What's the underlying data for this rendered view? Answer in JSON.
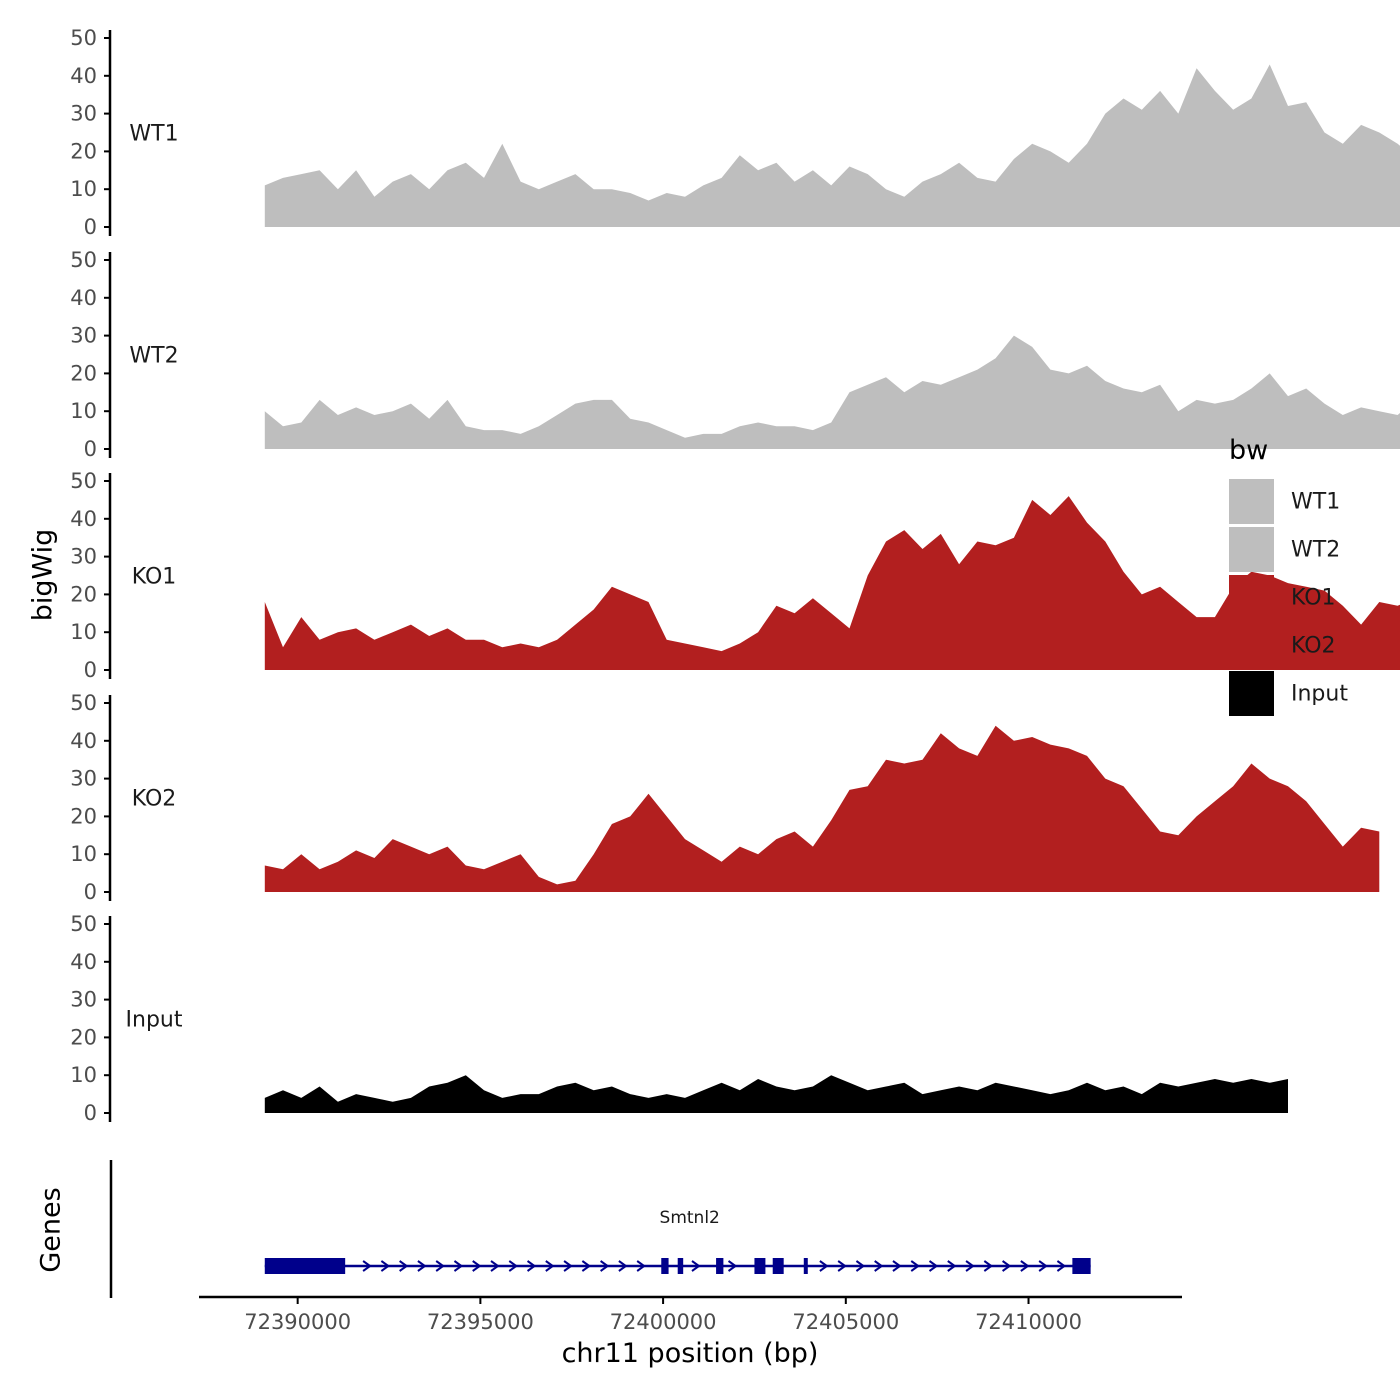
{
  "chart_data": {
    "type": "area",
    "chromosome": "chr11",
    "xlabel": "chr11 position (bp)",
    "ylabel": "bigWig",
    "gene_track_label": "Genes",
    "xlim": [
      72387300,
      72414200
    ],
    "xticks": [
      72390000,
      72395000,
      72400000,
      72405000,
      72410000
    ],
    "xtick_labels": [
      "72390000",
      "72395000",
      "72400000",
      "72405000",
      "72410000"
    ],
    "ylim": [
      0,
      50
    ],
    "yticks": [
      0,
      10,
      20,
      30,
      40,
      50
    ],
    "ytick_labels": [
      "0",
      "10",
      "20",
      "30",
      "40",
      "50"
    ],
    "data_start": 72389100,
    "data_step": 500,
    "legend": {
      "title": "bw",
      "entries": [
        {
          "label": "WT1",
          "color": "#bebebe"
        },
        {
          "label": "WT2",
          "color": "#bebebe"
        },
        {
          "label": "KO1",
          "color": "#b21f1f"
        },
        {
          "label": "KO2",
          "color": "#b21f1f"
        },
        {
          "label": "Input",
          "color": "#000000"
        }
      ]
    },
    "series": [
      {
        "name": "WT1",
        "color": "#bebebe",
        "values": [
          11,
          13,
          14,
          15,
          10,
          15,
          8,
          12,
          14,
          10,
          15,
          17,
          13,
          22,
          12,
          10,
          12,
          14,
          10,
          10,
          9,
          7,
          9,
          8,
          11,
          13,
          19,
          15,
          17,
          12,
          15,
          11,
          16,
          14,
          10,
          8,
          12,
          14,
          17,
          13,
          12,
          18,
          22,
          20,
          17,
          22,
          30,
          34,
          31,
          36,
          30,
          42,
          36,
          31,
          34,
          43,
          32,
          33,
          25,
          22,
          27,
          25,
          22,
          18,
          17,
          14,
          16,
          18,
          17,
          25,
          26,
          17,
          17,
          16,
          14,
          15,
          12,
          13
        ]
      },
      {
        "name": "WT2",
        "color": "#bebebe",
        "values": [
          10,
          6,
          7,
          13,
          9,
          11,
          9,
          10,
          12,
          8,
          13,
          6,
          5,
          5,
          4,
          6,
          9,
          12,
          13,
          13,
          8,
          7,
          5,
          3,
          4,
          4,
          6,
          7,
          6,
          6,
          5,
          7,
          15,
          17,
          19,
          15,
          18,
          17,
          19,
          21,
          24,
          30,
          27,
          21,
          20,
          22,
          18,
          16,
          15,
          17,
          10,
          13,
          12,
          13,
          16,
          20,
          14,
          16,
          12,
          9,
          11,
          10,
          9,
          13,
          10,
          12
        ]
      },
      {
        "name": "KO1",
        "color": "#b21f1f",
        "values": [
          18,
          6,
          14,
          8,
          10,
          11,
          8,
          10,
          12,
          9,
          11,
          8,
          8,
          6,
          7,
          6,
          8,
          12,
          16,
          22,
          20,
          18,
          8,
          7,
          6,
          5,
          7,
          10,
          17,
          15,
          19,
          15,
          11,
          25,
          34,
          37,
          32,
          36,
          28,
          34,
          33,
          35,
          45,
          41,
          46,
          39,
          34,
          26,
          20,
          22,
          18,
          14,
          14,
          22,
          26,
          25,
          23,
          22,
          21,
          17,
          12,
          18,
          17,
          19
        ]
      },
      {
        "name": "KO2",
        "color": "#b21f1f",
        "values": [
          7,
          6,
          10,
          6,
          8,
          11,
          9,
          14,
          12,
          10,
          12,
          7,
          6,
          8,
          10,
          4,
          2,
          3,
          10,
          18,
          20,
          26,
          20,
          14,
          11,
          8,
          12,
          10,
          14,
          16,
          12,
          19,
          27,
          28,
          35,
          34,
          35,
          42,
          38,
          36,
          44,
          40,
          41,
          39,
          38,
          36,
          30,
          28,
          22,
          16,
          15,
          20,
          24,
          28,
          34,
          30,
          28,
          24,
          18,
          12,
          17,
          16
        ]
      },
      {
        "name": "Input",
        "color": "#000000",
        "values": [
          4,
          6,
          4,
          7,
          3,
          5,
          4,
          3,
          4,
          7,
          8,
          10,
          6,
          4,
          5,
          5,
          7,
          8,
          6,
          7,
          5,
          4,
          5,
          4,
          6,
          8,
          6,
          9,
          7,
          6,
          7,
          10,
          8,
          6,
          7,
          8,
          5,
          6,
          7,
          6,
          8,
          7,
          6,
          5,
          6,
          8,
          6,
          7,
          5,
          8,
          7,
          8,
          9,
          8,
          9,
          8,
          9
        ]
      }
    ],
    "genes": [
      {
        "name": "Smtnl2",
        "strand": "-",
        "start": 72389100,
        "end": 72411700,
        "exons": [
          [
            72389100,
            72391300
          ],
          [
            72399950,
            72400150
          ],
          [
            72400400,
            72400550
          ],
          [
            72401450,
            72401650
          ],
          [
            72402500,
            72402800
          ],
          [
            72403000,
            72403300
          ],
          [
            72403850,
            72403950
          ],
          [
            72411200,
            72411700
          ]
        ]
      }
    ]
  }
}
